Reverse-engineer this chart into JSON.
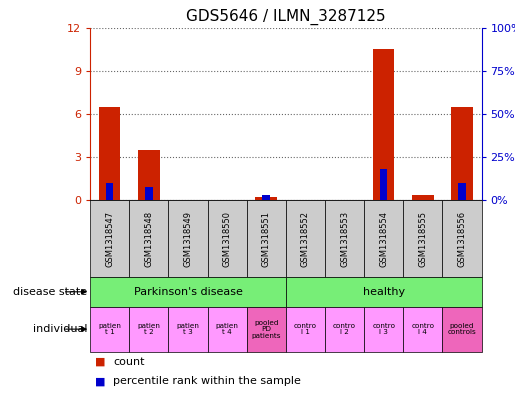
{
  "title": "GDS5646 / ILMN_3287125",
  "samples": [
    "GSM1318547",
    "GSM1318548",
    "GSM1318549",
    "GSM1318550",
    "GSM1318551",
    "GSM1318552",
    "GSM1318553",
    "GSM1318554",
    "GSM1318555",
    "GSM1318556"
  ],
  "count_values": [
    6.5,
    3.5,
    0,
    0,
    0.25,
    0,
    0,
    10.5,
    0.4,
    6.5
  ],
  "percentile_values": [
    10,
    8,
    0,
    0,
    3,
    0,
    0,
    18,
    0,
    10
  ],
  "ylim_left": [
    0,
    12
  ],
  "ylim_right": [
    0,
    100
  ],
  "yticks_left": [
    0,
    3,
    6,
    9,
    12
  ],
  "yticks_right": [
    0,
    25,
    50,
    75,
    100
  ],
  "ytick_labels_left": [
    "0",
    "3",
    "6",
    "9",
    "12"
  ],
  "ytick_labels_right": [
    "0%",
    "25%",
    "50%",
    "75%",
    "100%"
  ],
  "disease_state_labels": [
    "Parkinson's disease",
    "healthy"
  ],
  "disease_state_color": "#77ee77",
  "individual_bg_normal": "#ff99ff",
  "individual_bg_pooled": "#ee66bb",
  "bar_color_count": "#cc2200",
  "bar_color_percentile": "#0000cc",
  "bar_width": 0.55,
  "grid_color": "#000000",
  "sample_bg_color": "#cccccc",
  "left_label_disease": "disease state",
  "left_label_individual": "individual",
  "legend_count_label": "count",
  "legend_percentile_label": "percentile rank within the sample",
  "indiv_labels": [
    "patien\nt 1",
    "patien\nt 2",
    "patien\nt 3",
    "patien\nt 4",
    "pooled\nPD\npatients",
    "contro\nl 1",
    "contro\nl 2",
    "contro\nl 3",
    "contro\nl 4",
    "pooled\ncontrols"
  ],
  "indiv_is_pooled": [
    false,
    false,
    false,
    false,
    true,
    false,
    false,
    false,
    false,
    true
  ]
}
